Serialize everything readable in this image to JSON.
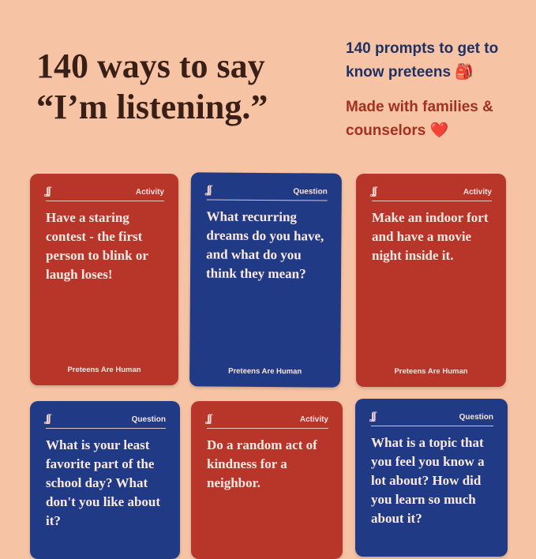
{
  "headline": {
    "line1": "140 ways to say",
    "line2": "“I’m listening.”"
  },
  "taglines": [
    {
      "text": "140 prompts to get to know preteens",
      "emoji": "🎒"
    },
    {
      "text": "Made with families & counselors",
      "emoji": "❤️"
    }
  ],
  "colors": {
    "background": "#f6c4a5",
    "activity_card": "#b8352a",
    "question_card": "#213a85"
  },
  "cards": [
    {
      "type": "Activity",
      "logo": "ʆʆ",
      "prompt": "Have a staring contest - the first person to blink or laugh loses!",
      "brand": "Preteens Are Human"
    },
    {
      "type": "Question",
      "logo": "ʆʆ",
      "prompt": "What recurring dreams do you have, and what do you think they mean?",
      "brand": "Preteens Are Human"
    },
    {
      "type": "Activity",
      "logo": "ʆʆ",
      "prompt": "Make an indoor fort and have a movie night inside it.",
      "brand": "Preteens Are Human"
    },
    {
      "type": "Question",
      "logo": "ʆʆ",
      "prompt": "What is your least favorite part of the school day? What don't you like about it?"
    },
    {
      "type": "Activity",
      "logo": "ʆʆ",
      "prompt": "Do a random act of kindness for a neighbor."
    },
    {
      "type": "Question",
      "logo": "ʆʆ",
      "prompt": "What is a topic that you feel you know a lot about? How did you learn so much about it?"
    }
  ]
}
